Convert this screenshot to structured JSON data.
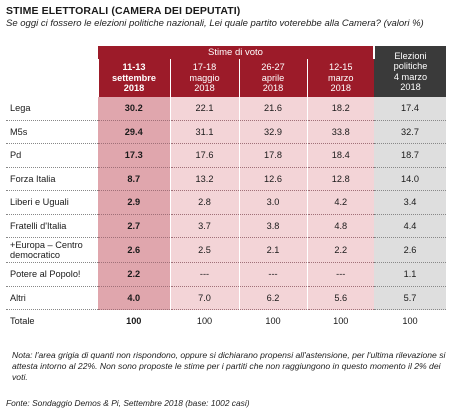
{
  "title": "STIME ELETTORALI (CAMERA DEI DEPUTATI)",
  "subtitle": "Se oggi ci fossero le elezioni politiche nazionali, Lei quale partito voterebbe alla Camera? (valori %)",
  "header": {
    "stime_label": "Stime di voto",
    "columns": [
      {
        "l1": "11-13",
        "l2": "settembre",
        "l3": "2018"
      },
      {
        "l1": "17-18",
        "l2": "maggio",
        "l3": "2018"
      },
      {
        "l1": "26-27",
        "l2": "aprile",
        "l3": "2018"
      },
      {
        "l1": "12-15",
        "l2": "marzo",
        "l3": "2018"
      }
    ],
    "elezioni": {
      "l1": "Elezioni",
      "l2": "politiche",
      "l3": "4 marzo",
      "l4": "2018"
    }
  },
  "rows": [
    {
      "party": "Lega",
      "v": [
        "30.2",
        "22.1",
        "21.6",
        "18.2",
        "17.4"
      ]
    },
    {
      "party": "M5s",
      "v": [
        "29.4",
        "31.1",
        "32.9",
        "33.8",
        "32.7"
      ]
    },
    {
      "party": "Pd",
      "v": [
        "17.3",
        "17.6",
        "17.8",
        "18.4",
        "18.7"
      ]
    },
    {
      "party": "Forza Italia",
      "v": [
        "8.7",
        "13.2",
        "12.6",
        "12.8",
        "14.0"
      ]
    },
    {
      "party": "Liberi e Uguali",
      "v": [
        "2.9",
        "2.8",
        "3.0",
        "4.2",
        "3.4"
      ]
    },
    {
      "party": "Fratelli d'Italia",
      "v": [
        "2.7",
        "3.7",
        "3.8",
        "4.8",
        "4.4"
      ]
    },
    {
      "party": "+Europa – Centro democratico",
      "v": [
        "2.6",
        "2.5",
        "2.1",
        "2.2",
        "2.6"
      ]
    },
    {
      "party": "Potere al Popolo!",
      "v": [
        "2.2",
        "---",
        "---",
        "---",
        "1.1"
      ]
    },
    {
      "party": "Altri",
      "v": [
        "4.0",
        "7.0",
        "6.2",
        "5.6",
        "5.7"
      ]
    }
  ],
  "total": {
    "label": "Totale",
    "v": [
      "100",
      "100",
      "100",
      "100",
      "100"
    ]
  },
  "note": "Nota: l'area grigia di quanti non rispondono, oppure si dichiarano propensi all'astensione, per l'ultima rilevazione si attesta intorno al 22%. Non sono proposte le stime per i partiti che non raggiungono in questo momento il 2% dei voti.",
  "fonte": "Fonte: Sondaggio Demos & Pi, Settembre 2018 (base: 1002 casi)",
  "colors": {
    "header_red": "#9c1b29",
    "first_col_pink": "#e0a6ad",
    "cell_pink": "#f3d4d7",
    "elezioni_dark": "#3a3a3a",
    "elezioni_gray": "#dedede"
  },
  "chart_data": {
    "type": "table",
    "title": "STIME ELETTORALI (CAMERA DEI DEPUTATI)",
    "columns": [
      "11-13 settembre 2018",
      "17-18 maggio 2018",
      "26-27 aprile 2018",
      "12-15 marzo 2018",
      "Elezioni politiche 4 marzo 2018"
    ],
    "rows": [
      "Lega",
      "M5s",
      "Pd",
      "Forza Italia",
      "Liberi e Uguali",
      "Fratelli d'Italia",
      "+Europa – Centro democratico",
      "Potere al Popolo!",
      "Altri",
      "Totale"
    ],
    "values": [
      [
        30.2,
        22.1,
        21.6,
        18.2,
        17.4
      ],
      [
        29.4,
        31.1,
        32.9,
        33.8,
        32.7
      ],
      [
        17.3,
        17.6,
        17.8,
        18.4,
        18.7
      ],
      [
        8.7,
        13.2,
        12.6,
        12.8,
        14.0
      ],
      [
        2.9,
        2.8,
        3.0,
        4.2,
        3.4
      ],
      [
        2.7,
        3.7,
        3.8,
        4.8,
        4.4
      ],
      [
        2.6,
        2.5,
        2.1,
        2.2,
        2.6
      ],
      [
        2.2,
        null,
        null,
        null,
        1.1
      ],
      [
        4.0,
        7.0,
        6.2,
        5.6,
        5.7
      ],
      [
        100,
        100,
        100,
        100,
        100
      ]
    ]
  }
}
